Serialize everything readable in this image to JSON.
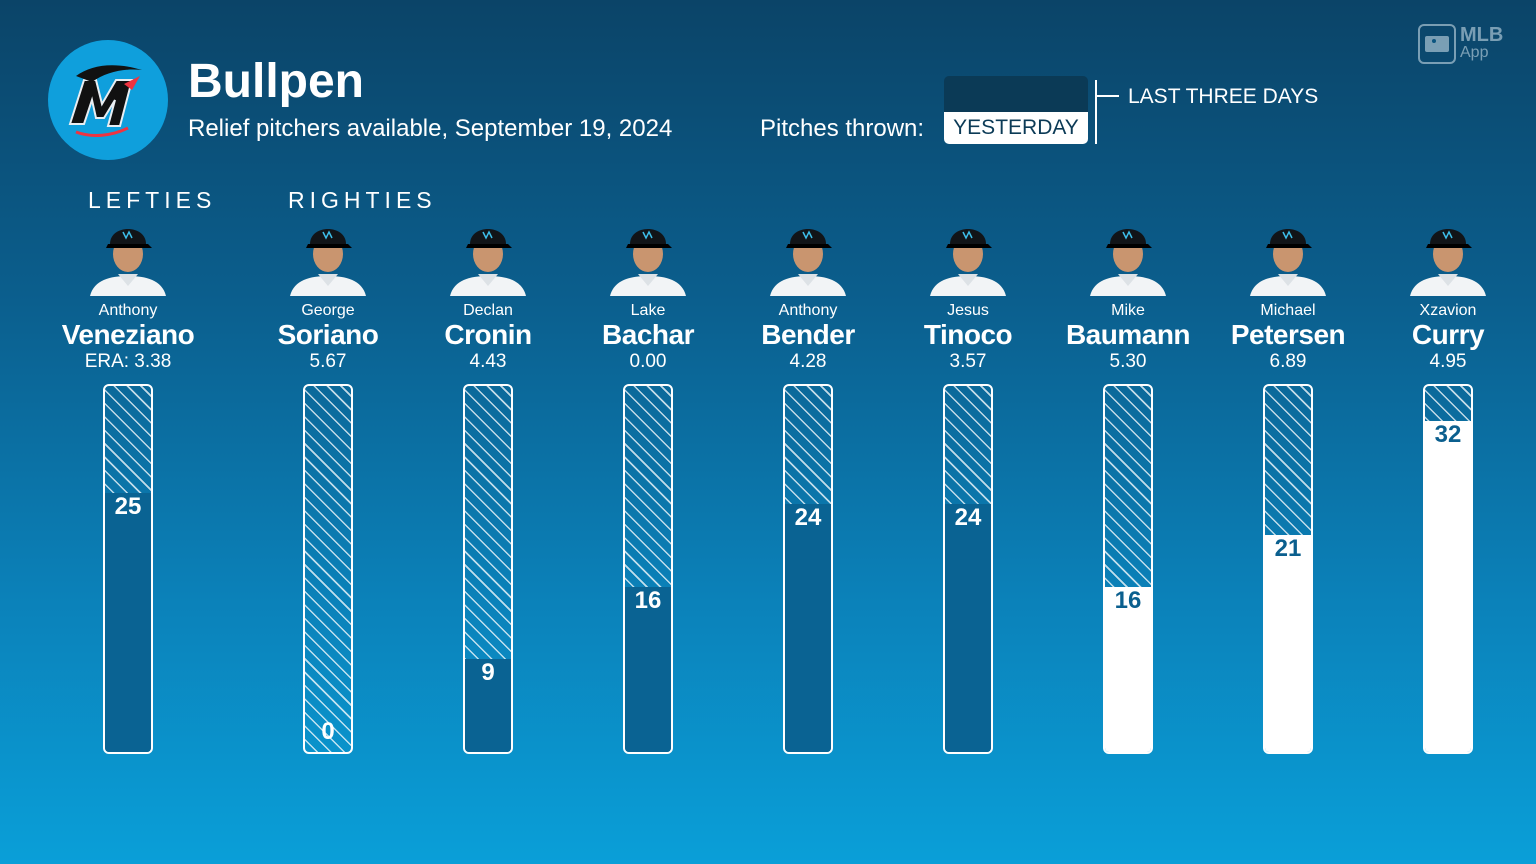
{
  "header": {
    "title": "Bullpen",
    "subtitle": "Relief pitchers available, September 19, 2024",
    "pitches_label": "Pitches thrown:",
    "toggle_selected": "YESTERDAY",
    "toggle_other": "LAST THREE DAYS",
    "watermark_line1": "MLB",
    "watermark_line2": "App"
  },
  "groups": {
    "lefties": "LEFTIES",
    "righties": "RIGHTIES"
  },
  "colors": {
    "bar_dark": "#0a6393",
    "bar_white": "#ffffff",
    "logo_circle": "#0f9fdc",
    "button_dark": "#0b3a56"
  },
  "chart_data": {
    "type": "bar",
    "title": "Bullpen",
    "ymax": 35,
    "categories": [
      "Anthony Veneziano",
      "George Soriano",
      "Declan Cronin",
      "Lake Bachar",
      "Anthony Bender",
      "Jesus Tinoco",
      "Mike Baumann",
      "Michael Petersen",
      "Xzavion Curry"
    ],
    "pitchers": [
      {
        "first": "Anthony",
        "last": "Veneziano",
        "era": "ERA: 3.38",
        "pitches": 25,
        "fill": "dark",
        "group": "lefties"
      },
      {
        "first": "George",
        "last": "Soriano",
        "era": "5.67",
        "pitches": 0,
        "fill": "dark",
        "group": "righties"
      },
      {
        "first": "Declan",
        "last": "Cronin",
        "era": "4.43",
        "pitches": 9,
        "fill": "dark",
        "group": "righties"
      },
      {
        "first": "Lake",
        "last": "Bachar",
        "era": "0.00",
        "pitches": 16,
        "fill": "dark",
        "group": "righties"
      },
      {
        "first": "Anthony",
        "last": "Bender",
        "era": "4.28",
        "pitches": 24,
        "fill": "dark",
        "group": "righties"
      },
      {
        "first": "Jesus",
        "last": "Tinoco",
        "era": "3.57",
        "pitches": 24,
        "fill": "dark",
        "group": "righties"
      },
      {
        "first": "Mike",
        "last": "Baumann",
        "era": "5.30",
        "pitches": 16,
        "fill": "white",
        "group": "righties"
      },
      {
        "first": "Michael",
        "last": "Petersen",
        "era": "6.89",
        "pitches": 21,
        "fill": "white",
        "group": "righties"
      },
      {
        "first": "Xzavion",
        "last": "Curry",
        "era": "4.95",
        "pitches": 32,
        "fill": "white",
        "group": "righties"
      }
    ]
  }
}
